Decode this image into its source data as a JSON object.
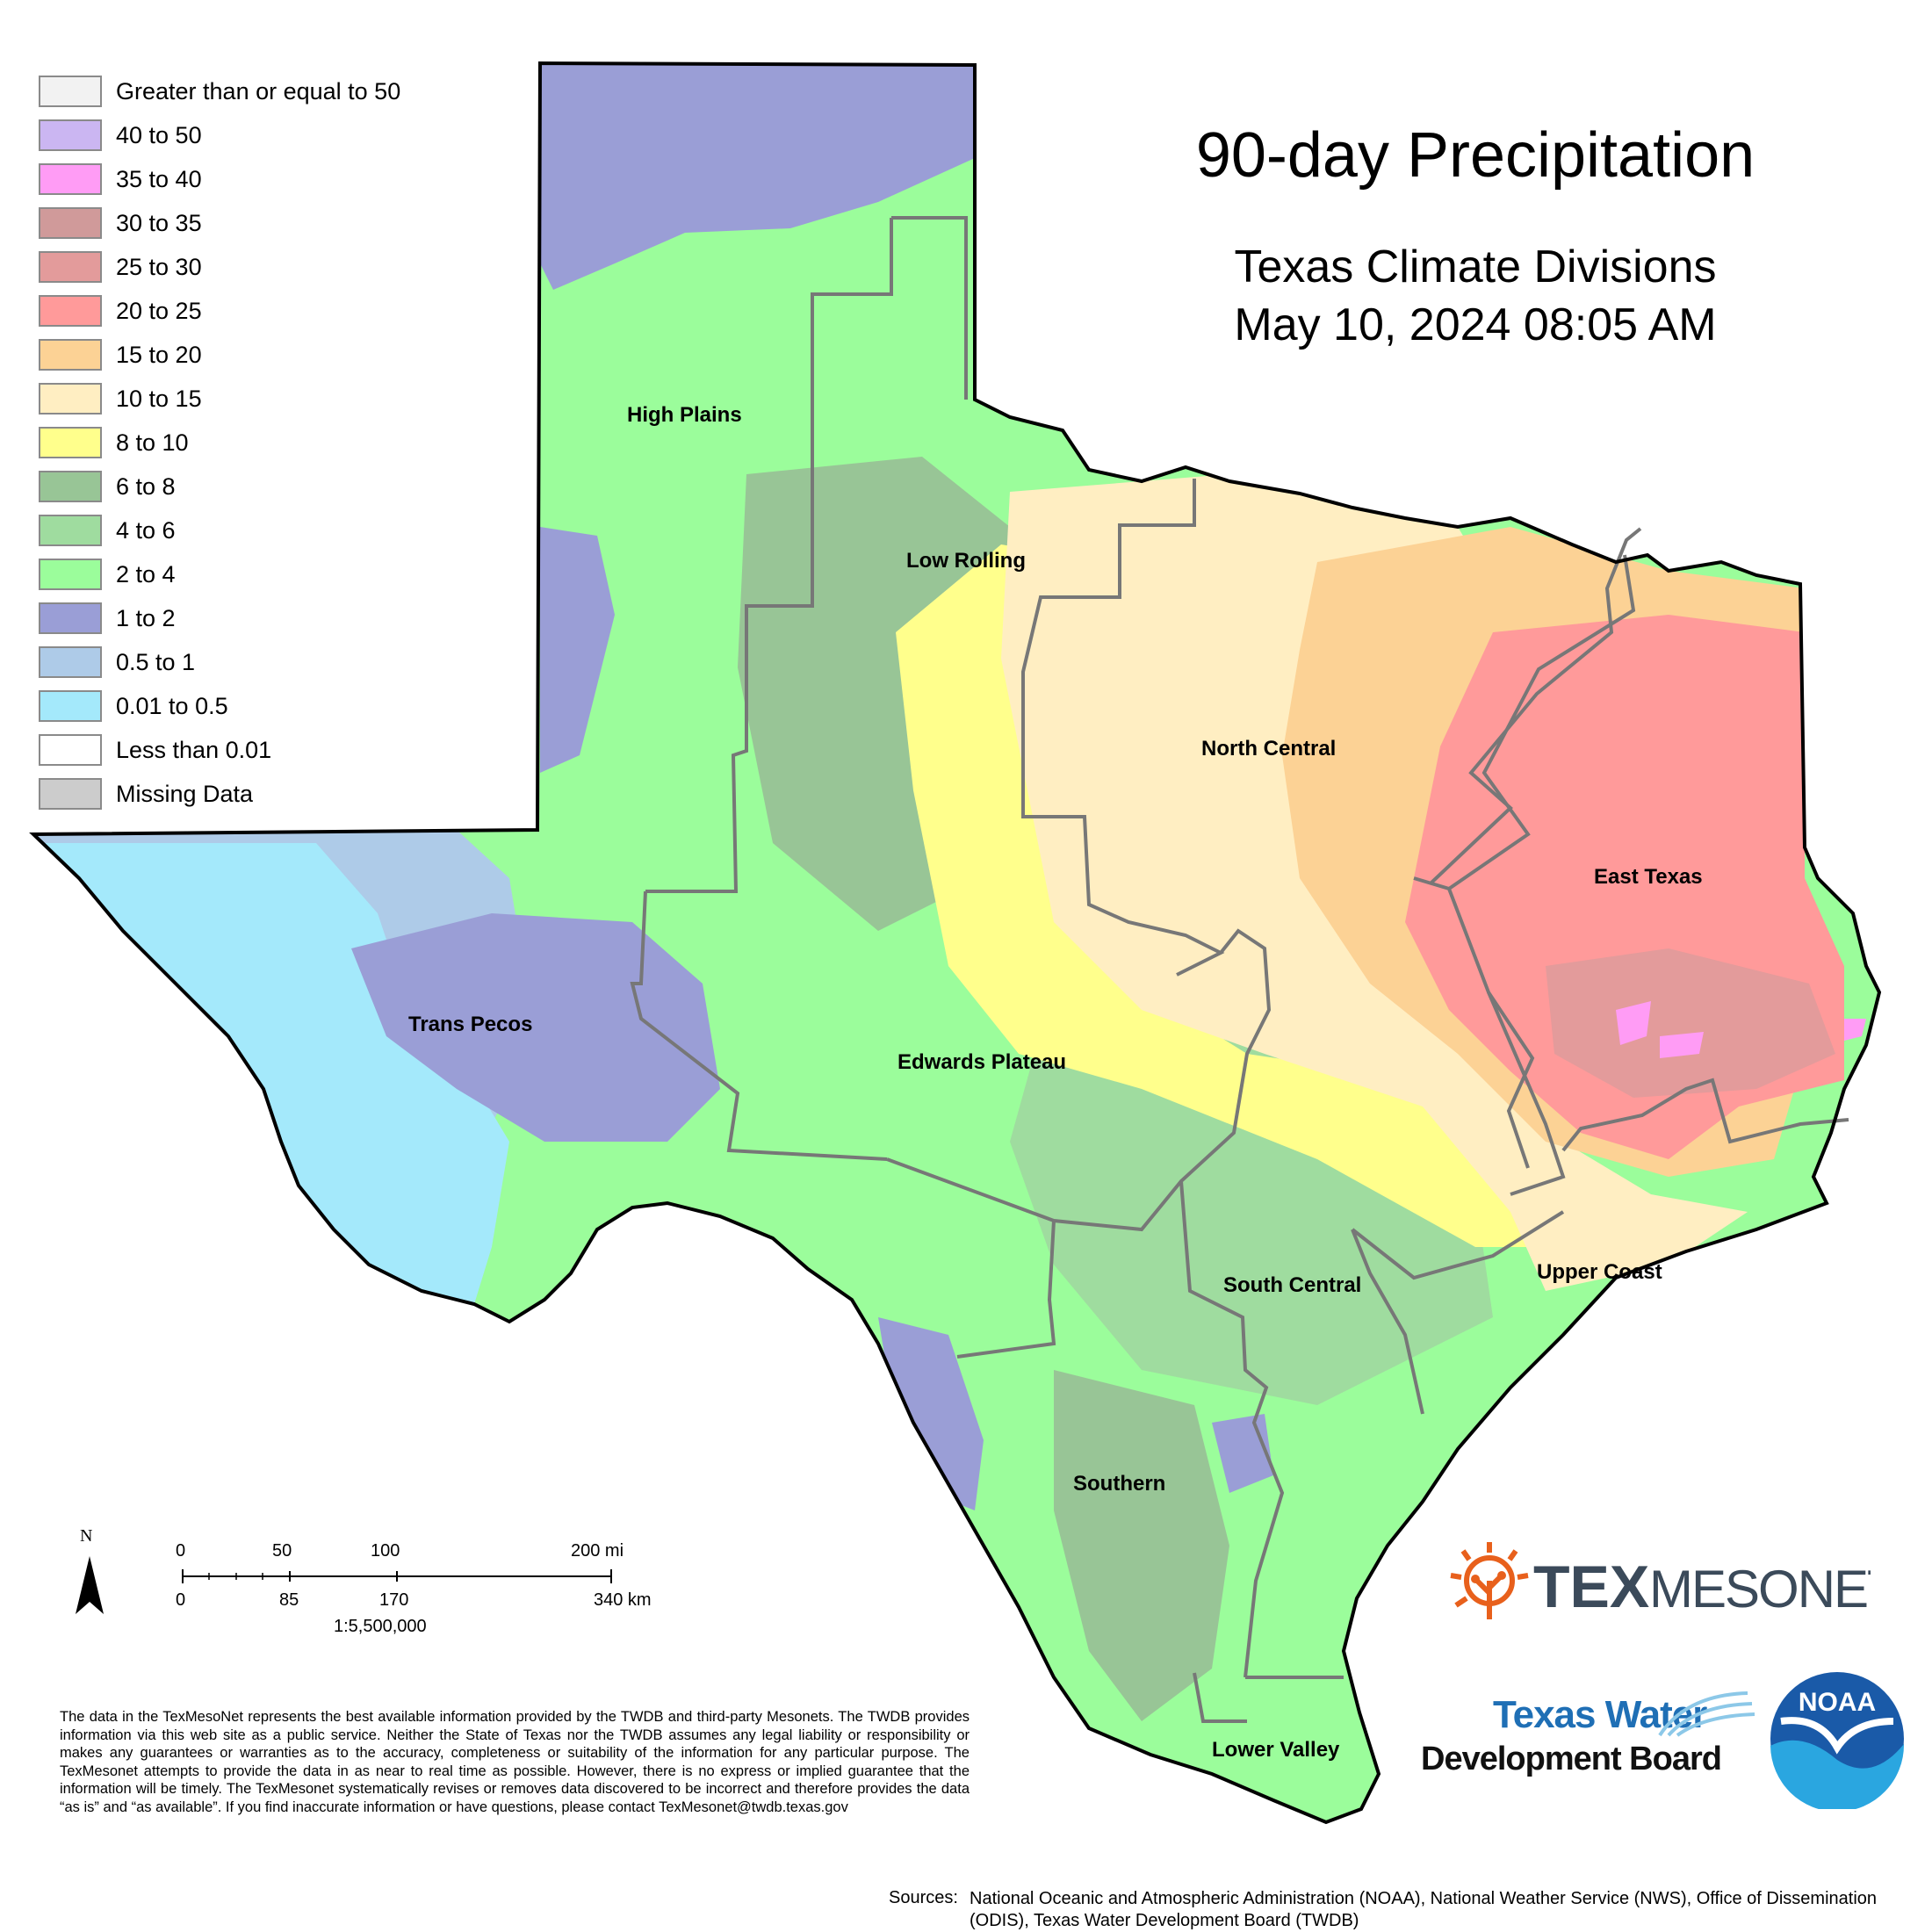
{
  "title": "90-day Precipitation",
  "subtitle": "Texas Climate Divisions",
  "date": "May 10, 2024 08:05 AM",
  "legend": [
    {
      "label": "Greater than or equal to 50",
      "color": "#f2f2f2"
    },
    {
      "label": "40 to 50",
      "color": "#cbb6f2"
    },
    {
      "label": "35 to 40",
      "color": "#ff9cf5"
    },
    {
      "label": "30 to 35",
      "color": "#d09a9a"
    },
    {
      "label": "25 to 30",
      "color": "#e39b9b"
    },
    {
      "label": "20 to 25",
      "color": "#ff9a9a"
    },
    {
      "label": "15 to 20",
      "color": "#fcd295"
    },
    {
      "label": "10 to 15",
      "color": "#ffeec2"
    },
    {
      "label": "8 to 10",
      "color": "#ffff8c"
    },
    {
      "label": "6 to 8",
      "color": "#98c596"
    },
    {
      "label": "4 to 6",
      "color": "#9fdc9f"
    },
    {
      "label": "2 to 4",
      "color": "#9bfd9b"
    },
    {
      "label": "1 to 2",
      "color": "#9a9ed6"
    },
    {
      "label": "0.5 to 1",
      "color": "#aecbe8"
    },
    {
      "label": "0.01 to 0.5",
      "color": "#a4e9fb"
    },
    {
      "label": "Less than 0.01",
      "color": "#ffffff"
    },
    {
      "label": "Missing Data",
      "color": "#cccccc"
    }
  ],
  "divisions": {
    "high_plains": "High Plains",
    "low_rolling": "Low Rolling",
    "north_central": "North Central",
    "east_texas": "East Texas",
    "trans_pecos": "Trans Pecos",
    "edwards_plateau": "Edwards Plateau",
    "south_central": "South Central",
    "upper_coast": "Upper Coast",
    "southern": "Southern",
    "lower_valley": "Lower Valley"
  },
  "north_letter": "N",
  "scale": {
    "mi_0": "0",
    "mi_50": "50",
    "mi_100": "100",
    "mi_200": "200 mi",
    "km_0": "0",
    "km_85": "85",
    "km_170": "170",
    "km_340": "340 km",
    "ratio": "1:5,500,000"
  },
  "disclaimer": "The data in the TexMesoNet represents the best available information provided by the TWDB and third-party Mesonets. The TWDB provides information via this web site as a public service. Neither the State of Texas nor the TWDB assumes any legal liability or responsibility or makes any guarantees or warranties as to the accuracy, completeness or suitability of the information for any particular purpose. The TexMesonet attempts to provide the data in as near to real time as possible. However, there is no express or implied guarantee that the information will be timely. The TexMesonet systematically revises or removes data discovered to be incorrect and therefore provides the data “as is” and “as available”. If you find inaccurate information or have questions, please contact TexMesonet@twdb.texas.gov",
  "sources_label": "Sources:",
  "sources_text": "National Oceanic and Atmospheric Administration (NOAA), National Weather Service (NWS), Office of Dissemination (ODIS), Texas Water Development Board (TWDB)",
  "logos": {
    "texmesonet_tex": "TEX",
    "texmesonet_mesonet": "MESONET",
    "twdb_line1": "Texas Water",
    "twdb_line2": "Development Board",
    "noaa": "NOAA"
  }
}
